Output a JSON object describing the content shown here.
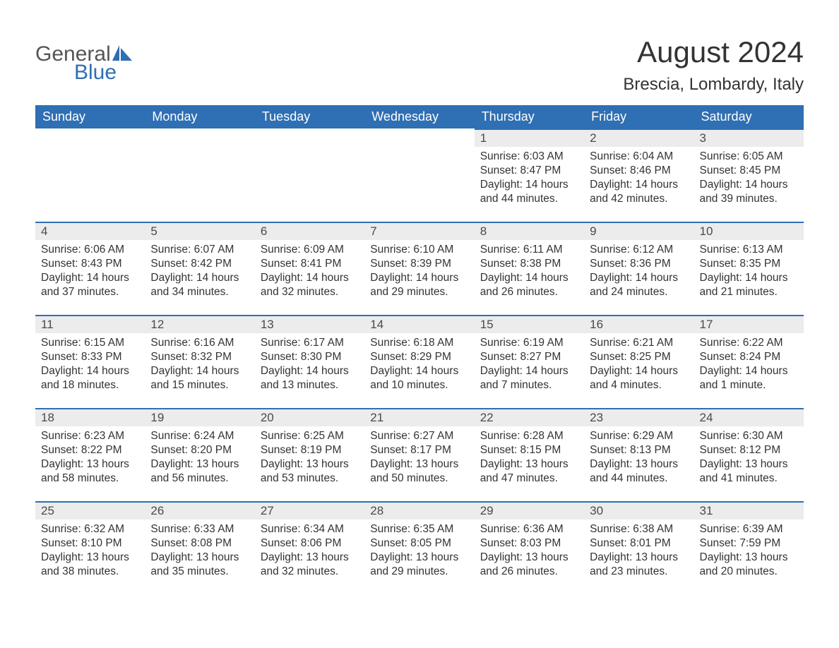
{
  "logo": {
    "general": "General",
    "blue": "Blue",
    "color": "#2f6fb3"
  },
  "header": {
    "month_year": "August 2024",
    "location": "Brescia, Lombardy, Italy"
  },
  "colors": {
    "header_bg": "#2f6fb3",
    "header_text": "#ffffff",
    "daynum_bg": "#ececec",
    "row_divider": "#2f6fb3",
    "text": "#333333",
    "background": "#ffffff"
  },
  "fonts": {
    "family": "Arial, Helvetica, sans-serif",
    "month_year_size": 42,
    "location_size": 24,
    "weekday_size": 18,
    "daynum_size": 17,
    "details_size": 15.5
  },
  "weekdays": [
    "Sunday",
    "Monday",
    "Tuesday",
    "Wednesday",
    "Thursday",
    "Friday",
    "Saturday"
  ],
  "weeks": [
    [
      null,
      null,
      null,
      null,
      {
        "n": "1",
        "sunrise": "Sunrise: 6:03 AM",
        "sunset": "Sunset: 8:47 PM",
        "daylight": "Daylight: 14 hours and 44 minutes."
      },
      {
        "n": "2",
        "sunrise": "Sunrise: 6:04 AM",
        "sunset": "Sunset: 8:46 PM",
        "daylight": "Daylight: 14 hours and 42 minutes."
      },
      {
        "n": "3",
        "sunrise": "Sunrise: 6:05 AM",
        "sunset": "Sunset: 8:45 PM",
        "daylight": "Daylight: 14 hours and 39 minutes."
      }
    ],
    [
      {
        "n": "4",
        "sunrise": "Sunrise: 6:06 AM",
        "sunset": "Sunset: 8:43 PM",
        "daylight": "Daylight: 14 hours and 37 minutes."
      },
      {
        "n": "5",
        "sunrise": "Sunrise: 6:07 AM",
        "sunset": "Sunset: 8:42 PM",
        "daylight": "Daylight: 14 hours and 34 minutes."
      },
      {
        "n": "6",
        "sunrise": "Sunrise: 6:09 AM",
        "sunset": "Sunset: 8:41 PM",
        "daylight": "Daylight: 14 hours and 32 minutes."
      },
      {
        "n": "7",
        "sunrise": "Sunrise: 6:10 AM",
        "sunset": "Sunset: 8:39 PM",
        "daylight": "Daylight: 14 hours and 29 minutes."
      },
      {
        "n": "8",
        "sunrise": "Sunrise: 6:11 AM",
        "sunset": "Sunset: 8:38 PM",
        "daylight": "Daylight: 14 hours and 26 minutes."
      },
      {
        "n": "9",
        "sunrise": "Sunrise: 6:12 AM",
        "sunset": "Sunset: 8:36 PM",
        "daylight": "Daylight: 14 hours and 24 minutes."
      },
      {
        "n": "10",
        "sunrise": "Sunrise: 6:13 AM",
        "sunset": "Sunset: 8:35 PM",
        "daylight": "Daylight: 14 hours and 21 minutes."
      }
    ],
    [
      {
        "n": "11",
        "sunrise": "Sunrise: 6:15 AM",
        "sunset": "Sunset: 8:33 PM",
        "daylight": "Daylight: 14 hours and 18 minutes."
      },
      {
        "n": "12",
        "sunrise": "Sunrise: 6:16 AM",
        "sunset": "Sunset: 8:32 PM",
        "daylight": "Daylight: 14 hours and 15 minutes."
      },
      {
        "n": "13",
        "sunrise": "Sunrise: 6:17 AM",
        "sunset": "Sunset: 8:30 PM",
        "daylight": "Daylight: 14 hours and 13 minutes."
      },
      {
        "n": "14",
        "sunrise": "Sunrise: 6:18 AM",
        "sunset": "Sunset: 8:29 PM",
        "daylight": "Daylight: 14 hours and 10 minutes."
      },
      {
        "n": "15",
        "sunrise": "Sunrise: 6:19 AM",
        "sunset": "Sunset: 8:27 PM",
        "daylight": "Daylight: 14 hours and 7 minutes."
      },
      {
        "n": "16",
        "sunrise": "Sunrise: 6:21 AM",
        "sunset": "Sunset: 8:25 PM",
        "daylight": "Daylight: 14 hours and 4 minutes."
      },
      {
        "n": "17",
        "sunrise": "Sunrise: 6:22 AM",
        "sunset": "Sunset: 8:24 PM",
        "daylight": "Daylight: 14 hours and 1 minute."
      }
    ],
    [
      {
        "n": "18",
        "sunrise": "Sunrise: 6:23 AM",
        "sunset": "Sunset: 8:22 PM",
        "daylight": "Daylight: 13 hours and 58 minutes."
      },
      {
        "n": "19",
        "sunrise": "Sunrise: 6:24 AM",
        "sunset": "Sunset: 8:20 PM",
        "daylight": "Daylight: 13 hours and 56 minutes."
      },
      {
        "n": "20",
        "sunrise": "Sunrise: 6:25 AM",
        "sunset": "Sunset: 8:19 PM",
        "daylight": "Daylight: 13 hours and 53 minutes."
      },
      {
        "n": "21",
        "sunrise": "Sunrise: 6:27 AM",
        "sunset": "Sunset: 8:17 PM",
        "daylight": "Daylight: 13 hours and 50 minutes."
      },
      {
        "n": "22",
        "sunrise": "Sunrise: 6:28 AM",
        "sunset": "Sunset: 8:15 PM",
        "daylight": "Daylight: 13 hours and 47 minutes."
      },
      {
        "n": "23",
        "sunrise": "Sunrise: 6:29 AM",
        "sunset": "Sunset: 8:13 PM",
        "daylight": "Daylight: 13 hours and 44 minutes."
      },
      {
        "n": "24",
        "sunrise": "Sunrise: 6:30 AM",
        "sunset": "Sunset: 8:12 PM",
        "daylight": "Daylight: 13 hours and 41 minutes."
      }
    ],
    [
      {
        "n": "25",
        "sunrise": "Sunrise: 6:32 AM",
        "sunset": "Sunset: 8:10 PM",
        "daylight": "Daylight: 13 hours and 38 minutes."
      },
      {
        "n": "26",
        "sunrise": "Sunrise: 6:33 AM",
        "sunset": "Sunset: 8:08 PM",
        "daylight": "Daylight: 13 hours and 35 minutes."
      },
      {
        "n": "27",
        "sunrise": "Sunrise: 6:34 AM",
        "sunset": "Sunset: 8:06 PM",
        "daylight": "Daylight: 13 hours and 32 minutes."
      },
      {
        "n": "28",
        "sunrise": "Sunrise: 6:35 AM",
        "sunset": "Sunset: 8:05 PM",
        "daylight": "Daylight: 13 hours and 29 minutes."
      },
      {
        "n": "29",
        "sunrise": "Sunrise: 6:36 AM",
        "sunset": "Sunset: 8:03 PM",
        "daylight": "Daylight: 13 hours and 26 minutes."
      },
      {
        "n": "30",
        "sunrise": "Sunrise: 6:38 AM",
        "sunset": "Sunset: 8:01 PM",
        "daylight": "Daylight: 13 hours and 23 minutes."
      },
      {
        "n": "31",
        "sunrise": "Sunrise: 6:39 AM",
        "sunset": "Sunset: 7:59 PM",
        "daylight": "Daylight: 13 hours and 20 minutes."
      }
    ]
  ]
}
